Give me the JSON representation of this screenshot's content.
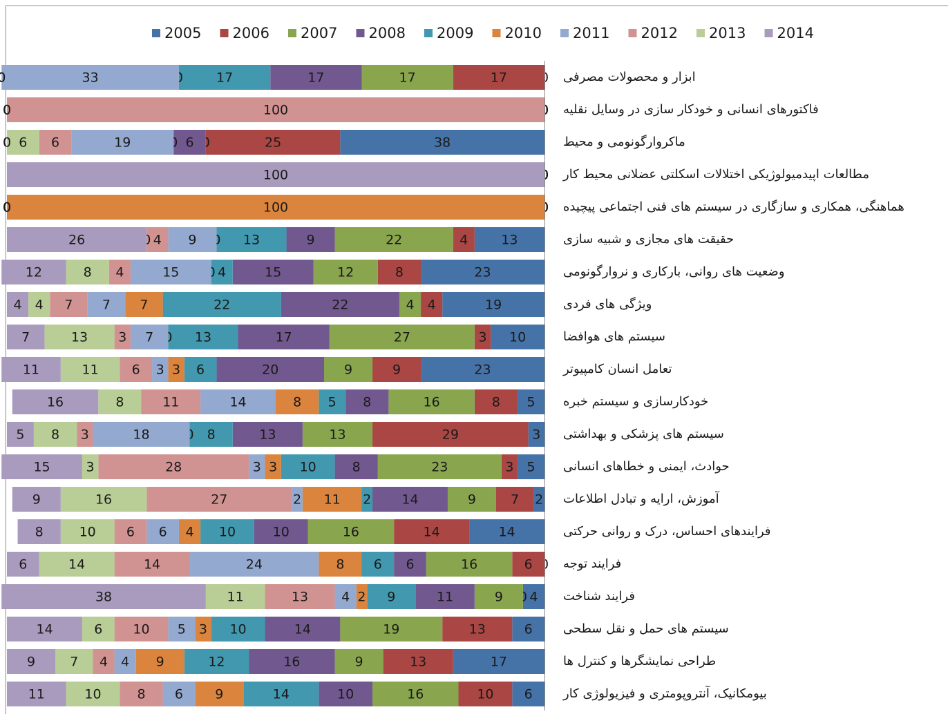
{
  "chart_data": {
    "type": "stacked-bar-horizontal",
    "categories": [
      "ابزار و محصولات مصرفی",
      "فاکتورهای انسانی و خودکار سازی در وسایل نقلیه",
      "ماکروارگونومی و محیط",
      "مطالعات اپیدمیولوژیکی اختلالات اسکلتی عضلانی محیط کار",
      "هماهنگی، همکاری و سازگاری در سیستم های فنی اجتماعی پیچیده",
      "حقیقت های مجازی و شبیه سازی",
      "وضعیت های روانی، بارکاری و نروارگونومی",
      "ویژگی های فردی",
      "سیستم های هوافضا",
      "تعامل انسان کامپیوتر",
      "خودکارسازی و سیستم خبره",
      "سیستم های پزشکی و بهداشتی",
      "حوادث، ایمنی و خطاهای انسانی",
      "آموزش، ارایه و تبادل اطلاعات",
      "فرایندهای احساس، درک و روانی حرکتی",
      "فرایند توجه",
      "فرایند شناخت",
      "سیستم های حمل و نقل سطحی",
      "طراحی نمایشگرها و کنترل ها",
      "بیومکانیک، آنتروپومتری و فیزیولوژی کار"
    ],
    "series": [
      {
        "name": "2005",
        "color": "#4572A7",
        "values": [
          0,
          0,
          38,
          0,
          0,
          13,
          23,
          19,
          10,
          23,
          5,
          3,
          5,
          2,
          14,
          0,
          4,
          6,
          17,
          6
        ]
      },
      {
        "name": "2006",
        "color": "#AA4643",
        "values": [
          17,
          0,
          25,
          0,
          0,
          4,
          8,
          4,
          3,
          9,
          8,
          29,
          3,
          7,
          14,
          6,
          0,
          13,
          13,
          10
        ]
      },
      {
        "name": "2007",
        "color": "#89A54E",
        "values": [
          17,
          0,
          0,
          0,
          0,
          22,
          12,
          4,
          27,
          9,
          16,
          13,
          23,
          9,
          16,
          16,
          9,
          19,
          9,
          16
        ]
      },
      {
        "name": "2008",
        "color": "#71588F",
        "values": [
          17,
          0,
          6,
          0,
          0,
          9,
          15,
          22,
          17,
          20,
          8,
          13,
          8,
          14,
          10,
          6,
          11,
          14,
          16,
          10
        ]
      },
      {
        "name": "2009",
        "color": "#4198AF",
        "values": [
          17,
          0,
          0,
          0,
          0,
          13,
          4,
          22,
          13,
          6,
          5,
          8,
          10,
          2,
          10,
          6,
          9,
          10,
          12,
          14
        ]
      },
      {
        "name": "2010",
        "color": "#DB843D",
        "values": [
          0,
          0,
          0,
          0,
          100,
          0,
          0,
          7,
          0,
          3,
          8,
          0,
          3,
          11,
          4,
          8,
          2,
          3,
          9,
          9
        ]
      },
      {
        "name": "2011",
        "color": "#93A9CF",
        "values": [
          33,
          0,
          19,
          0,
          0,
          9,
          15,
          7,
          7,
          3,
          14,
          18,
          3,
          2,
          6,
          24,
          4,
          5,
          4,
          6
        ]
      },
      {
        "name": "2012",
        "color": "#D19392",
        "values": [
          0,
          100,
          6,
          0,
          0,
          4,
          4,
          7,
          3,
          6,
          11,
          3,
          28,
          27,
          6,
          14,
          13,
          10,
          4,
          8
        ]
      },
      {
        "name": "2013",
        "color": "#B9CD96",
        "values": [
          0,
          0,
          6,
          0,
          0,
          0,
          8,
          4,
          13,
          11,
          8,
          8,
          3,
          16,
          10,
          14,
          11,
          6,
          7,
          10
        ]
      },
      {
        "name": "2014",
        "color": "#A99BBD",
        "values": [
          0,
          0,
          0,
          100,
          0,
          26,
          12,
          4,
          7,
          11,
          16,
          5,
          15,
          9,
          8,
          6,
          38,
          14,
          9,
          11
        ]
      }
    ],
    "xlim": [
      0,
      100
    ],
    "legend": "top"
  }
}
